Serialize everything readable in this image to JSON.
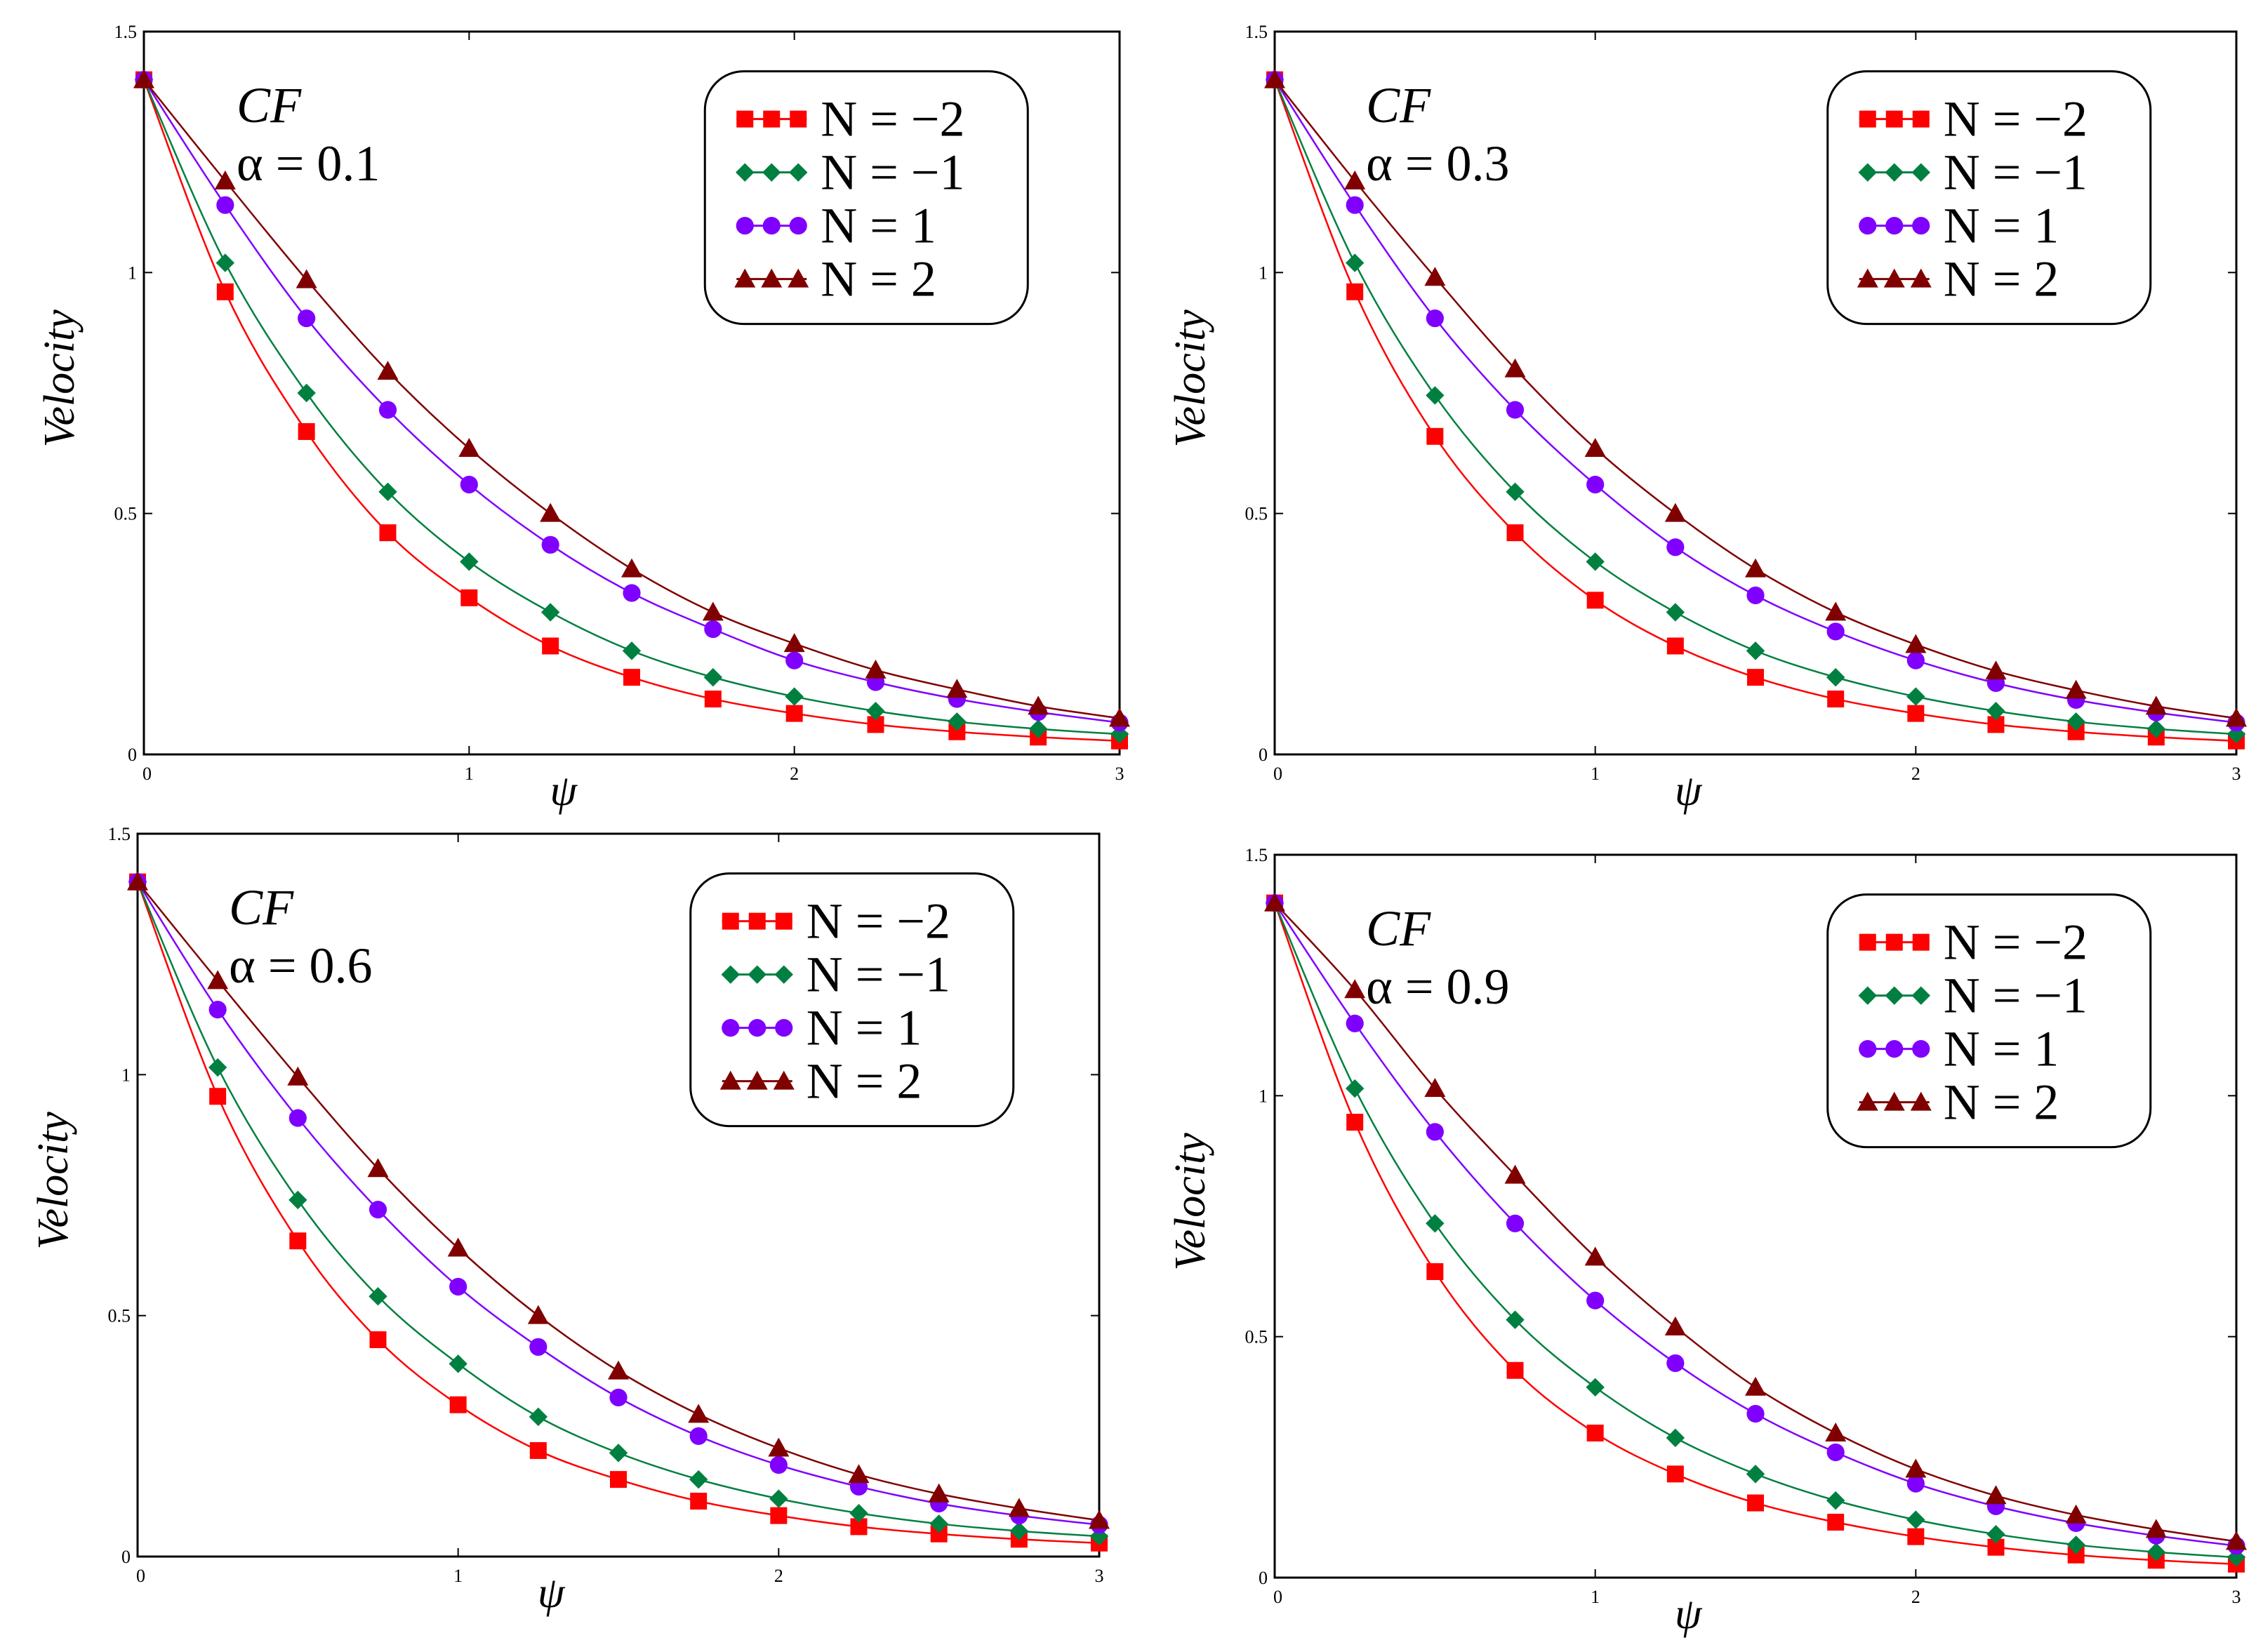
{
  "chart_data": [
    {
      "type": "line",
      "annotation_model": "CF",
      "annotation_param": "α = 0.1",
      "xlabel": "ψ",
      "ylabel": "Velocity",
      "xlim": [
        0,
        3
      ],
      "ylim": [
        0,
        1.5
      ],
      "xticks": [
        "0",
        "1",
        "2",
        "3"
      ],
      "yticks": [
        "0",
        "0.5",
        "1",
        "1.5"
      ],
      "grid": false,
      "legend": "top-right",
      "x": [
        0,
        0.25,
        0.5,
        0.75,
        1,
        1.25,
        1.5,
        1.75,
        2,
        2.25,
        2.5,
        2.75,
        3
      ],
      "series": [
        {
          "name": "N = −2",
          "color": "#ff0000",
          "marker": "square",
          "values": [
            1.4,
            0.96,
            0.67,
            0.46,
            0.325,
            0.225,
            0.16,
            0.115,
            0.085,
            0.062,
            0.047,
            0.036,
            0.028
          ]
        },
        {
          "name": "N = −1",
          "color": "#008040",
          "marker": "diamond",
          "values": [
            1.4,
            1.02,
            0.75,
            0.545,
            0.4,
            0.295,
            0.215,
            0.16,
            0.12,
            0.09,
            0.068,
            0.053,
            0.042
          ]
        },
        {
          "name": "N = 1",
          "color": "#8000ff",
          "marker": "circle",
          "values": [
            1.4,
            1.14,
            0.905,
            0.715,
            0.56,
            0.435,
            0.335,
            0.26,
            0.195,
            0.15,
            0.115,
            0.088,
            0.066
          ]
        },
        {
          "name": "N = 2",
          "color": "#800000",
          "marker": "triangle",
          "values": [
            1.4,
            1.19,
            0.985,
            0.795,
            0.635,
            0.5,
            0.385,
            0.295,
            0.23,
            0.175,
            0.135,
            0.1,
            0.075
          ]
        }
      ]
    },
    {
      "type": "line",
      "annotation_model": "CF",
      "annotation_param": "α = 0.3",
      "xlabel": "ψ",
      "ylabel": "Velocity",
      "xlim": [
        0,
        3
      ],
      "ylim": [
        0,
        1.5
      ],
      "xticks": [
        "0",
        "1",
        "2",
        "3"
      ],
      "yticks": [
        "0",
        "0.5",
        "1",
        "1.5"
      ],
      "grid": false,
      "legend": "top-right",
      "x": [
        0,
        0.25,
        0.5,
        0.75,
        1,
        1.25,
        1.5,
        1.75,
        2,
        2.25,
        2.5,
        2.75,
        3
      ],
      "series": [
        {
          "name": "N = −2",
          "color": "#ff0000",
          "marker": "square",
          "values": [
            1.4,
            0.96,
            0.66,
            0.46,
            0.32,
            0.225,
            0.16,
            0.115,
            0.085,
            0.062,
            0.047,
            0.036,
            0.028
          ]
        },
        {
          "name": "N = −1",
          "color": "#008040",
          "marker": "diamond",
          "values": [
            1.4,
            1.02,
            0.745,
            0.545,
            0.4,
            0.295,
            0.215,
            0.16,
            0.12,
            0.09,
            0.068,
            0.053,
            0.042
          ]
        },
        {
          "name": "N = 1",
          "color": "#8000ff",
          "marker": "circle",
          "values": [
            1.4,
            1.14,
            0.905,
            0.715,
            0.56,
            0.43,
            0.33,
            0.255,
            0.195,
            0.148,
            0.113,
            0.087,
            0.066
          ]
        },
        {
          "name": "N = 2",
          "color": "#800000",
          "marker": "triangle",
          "values": [
            1.4,
            1.19,
            0.99,
            0.8,
            0.635,
            0.5,
            0.385,
            0.295,
            0.228,
            0.173,
            0.133,
            0.1,
            0.075
          ]
        }
      ]
    },
    {
      "type": "line",
      "annotation_model": "CF",
      "annotation_param": "α = 0.6",
      "xlabel": "ψ",
      "ylabel": "Velocity",
      "xlim": [
        0,
        3
      ],
      "ylim": [
        0,
        1.5
      ],
      "xticks": [
        "0",
        "1",
        "2",
        "3"
      ],
      "yticks": [
        "0",
        "0.5",
        "1",
        "1.5"
      ],
      "grid": false,
      "legend": "top-right",
      "x": [
        0,
        0.25,
        0.5,
        0.75,
        1,
        1.25,
        1.5,
        1.75,
        2,
        2.25,
        2.5,
        2.75,
        3
      ],
      "series": [
        {
          "name": "N = −2",
          "color": "#ff0000",
          "marker": "square",
          "values": [
            1.4,
            0.955,
            0.655,
            0.45,
            0.315,
            0.22,
            0.16,
            0.115,
            0.085,
            0.062,
            0.047,
            0.036,
            0.028
          ]
        },
        {
          "name": "N = −1",
          "color": "#008040",
          "marker": "diamond",
          "values": [
            1.4,
            1.015,
            0.74,
            0.54,
            0.4,
            0.29,
            0.215,
            0.16,
            0.12,
            0.09,
            0.068,
            0.053,
            0.042
          ]
        },
        {
          "name": "N = 1",
          "color": "#8000ff",
          "marker": "circle",
          "values": [
            1.4,
            1.135,
            0.91,
            0.72,
            0.56,
            0.435,
            0.33,
            0.25,
            0.19,
            0.145,
            0.11,
            0.085,
            0.066
          ]
        },
        {
          "name": "N = 2",
          "color": "#800000",
          "marker": "triangle",
          "values": [
            1.4,
            1.195,
            0.995,
            0.805,
            0.64,
            0.5,
            0.385,
            0.295,
            0.225,
            0.17,
            0.13,
            0.1,
            0.075
          ]
        }
      ]
    },
    {
      "type": "line",
      "annotation_model": "CF",
      "annotation_param": "α = 0.9",
      "xlabel": "ψ",
      "ylabel": "Velocity",
      "xlim": [
        0,
        3
      ],
      "ylim": [
        0,
        1.5
      ],
      "xticks": [
        "0",
        "1",
        "2",
        "3"
      ],
      "yticks": [
        "0",
        "0.5",
        "1",
        "1.5"
      ],
      "grid": false,
      "legend": "top-right",
      "x": [
        0,
        0.25,
        0.5,
        0.75,
        1,
        1.25,
        1.5,
        1.75,
        2,
        2.25,
        2.5,
        2.75,
        3
      ],
      "series": [
        {
          "name": "N = −2",
          "color": "#ff0000",
          "marker": "square",
          "values": [
            1.4,
            0.945,
            0.635,
            0.43,
            0.3,
            0.215,
            0.155,
            0.115,
            0.085,
            0.063,
            0.047,
            0.036,
            0.028
          ]
        },
        {
          "name": "N = −1",
          "color": "#008040",
          "marker": "diamond",
          "values": [
            1.4,
            1.015,
            0.735,
            0.535,
            0.395,
            0.29,
            0.215,
            0.16,
            0.12,
            0.09,
            0.068,
            0.053,
            0.042
          ]
        },
        {
          "name": "N = 1",
          "color": "#8000ff",
          "marker": "circle",
          "values": [
            1.4,
            1.15,
            0.925,
            0.735,
            0.575,
            0.445,
            0.34,
            0.26,
            0.195,
            0.148,
            0.113,
            0.087,
            0.066
          ]
        },
        {
          "name": "N = 2",
          "color": "#800000",
          "marker": "triangle",
          "values": [
            1.4,
            1.22,
            1.015,
            0.835,
            0.665,
            0.52,
            0.395,
            0.3,
            0.225,
            0.17,
            0.13,
            0.1,
            0.075
          ]
        }
      ]
    }
  ]
}
